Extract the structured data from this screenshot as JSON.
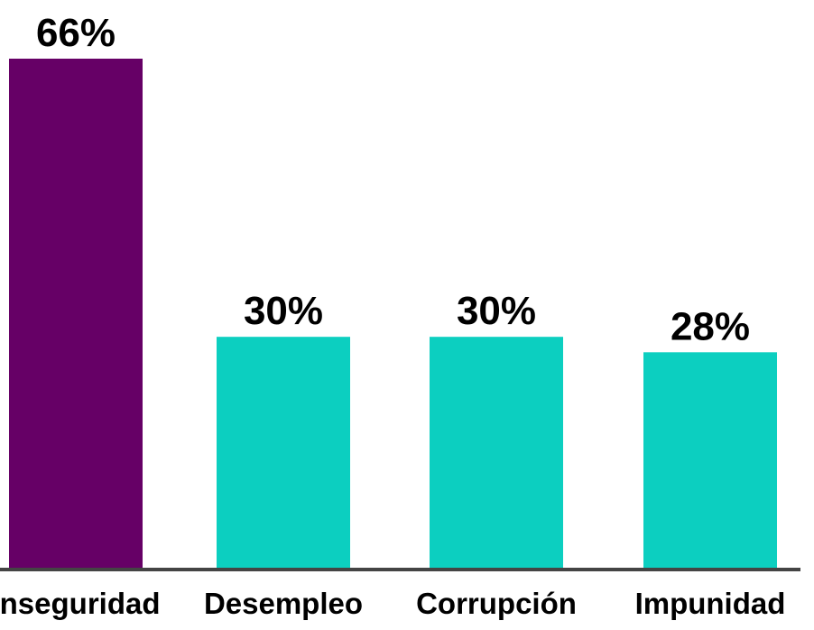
{
  "chart_data": {
    "type": "bar",
    "categories": [
      "Inseguridad",
      "Desempleo",
      "Corrupción",
      "Impunidad"
    ],
    "values": [
      66,
      30,
      30,
      28
    ],
    "value_labels": [
      "66%",
      "30%",
      "30%",
      "28%"
    ],
    "colors": [
      "#660066",
      "#0ccfc0",
      "#0ccfc0",
      "#0ccfc0"
    ]
  }
}
